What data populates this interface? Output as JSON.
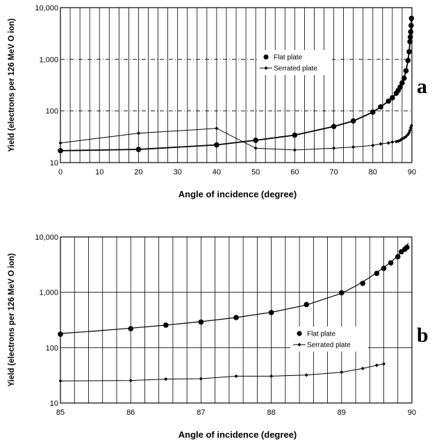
{
  "chart_data": [
    {
      "panel": "a",
      "type": "scatter",
      "xlabel": "Angle of incidence (degree)",
      "ylabel": "Yield (electrons per 126 MeV O ion)",
      "xlim": [
        0,
        90
      ],
      "ylim": [
        10,
        10000
      ],
      "yscale": "log",
      "x_ticks": [
        "0",
        "10",
        "20",
        "30",
        "40",
        "50",
        "60",
        "70",
        "80",
        "90"
      ],
      "y_ticks": [
        "10",
        "100",
        "1,000",
        "10,000"
      ],
      "grid": "vertical lines every 2.5 degrees; horizontal dashed at decades",
      "legend_position": "top-right",
      "series": [
        {
          "name": "Flat plate",
          "marker": "circle",
          "x": [
            0,
            20,
            40,
            50,
            60,
            70,
            75,
            80,
            82,
            84,
            85,
            86,
            86.5,
            87,
            87.5,
            88,
            88.5,
            89,
            89.3,
            89.5,
            89.6,
            89.7,
            89.8,
            89.9
          ],
          "y": [
            17,
            18,
            22,
            27,
            34,
            50,
            64,
            95,
            120,
            155,
            180,
            220,
            250,
            290,
            350,
            430,
            600,
            950,
            1400,
            2200,
            2700,
            3400,
            4500,
            6200
          ]
        },
        {
          "name": "Serrated plate",
          "marker": "diamond-line",
          "x": [
            0,
            20,
            40,
            50,
            60,
            70,
            75,
            80,
            82,
            84,
            85,
            86,
            86.5,
            87,
            87.5,
            88,
            88.5,
            89,
            89.3,
            89.5,
            89.7,
            89.9
          ],
          "y": [
            24,
            37,
            46,
            19,
            17.5,
            19,
            20,
            21.5,
            23,
            24,
            25,
            25.5,
            26,
            27,
            29,
            30,
            32,
            35,
            38,
            42,
            47,
            52
          ]
        }
      ]
    },
    {
      "panel": "b",
      "type": "scatter",
      "xlabel": "Angle of incidence (degree)",
      "ylabel": "Yield (electrons per 126 MeV O ion)",
      "xlim": [
        85,
        90
      ],
      "ylim": [
        10,
        10000
      ],
      "yscale": "log",
      "x_ticks": [
        "85",
        "86",
        "87",
        "88",
        "89",
        "90"
      ],
      "y_ticks": [
        "10",
        "100",
        "1,000",
        "10,000"
      ],
      "grid": "vertical lines every 0.2 degrees; horizontal solid at decades",
      "legend_position": "center-right",
      "series": [
        {
          "name": "Flat plate",
          "marker": "circle",
          "x": [
            85,
            86,
            86.5,
            87,
            87.5,
            88,
            88.5,
            89,
            89.3,
            89.5,
            89.6,
            89.7,
            89.8,
            89.85,
            89.9,
            89.93
          ],
          "y": [
            175,
            220,
            255,
            290,
            350,
            430,
            600,
            980,
            1450,
            2200,
            2700,
            3400,
            4400,
            5400,
            6000,
            6500
          ]
        },
        {
          "name": "Serrated plate",
          "marker": "diamond-line",
          "x": [
            85,
            86,
            86.5,
            87,
            87.5,
            88,
            88.5,
            89,
            89.3,
            89.5,
            89.6
          ],
          "y": [
            25,
            25.5,
            27,
            27.5,
            30.5,
            30.5,
            32,
            36,
            42,
            48,
            51
          ]
        }
      ],
      "fit_curve": {
        "x": [
          85,
          85.5,
          86,
          86.5,
          87,
          87.5,
          88,
          88.5,
          89,
          89.2,
          89.4,
          89.6,
          89.7,
          89.8,
          89.9,
          89.95
        ],
        "y": [
          180,
          200,
          225,
          255,
          295,
          350,
          435,
          590,
          960,
          1300,
          1850,
          2800,
          3500,
          4600,
          6200,
          7700
        ]
      }
    }
  ],
  "labels": {
    "panel_a": "a",
    "panel_b": "b"
  }
}
